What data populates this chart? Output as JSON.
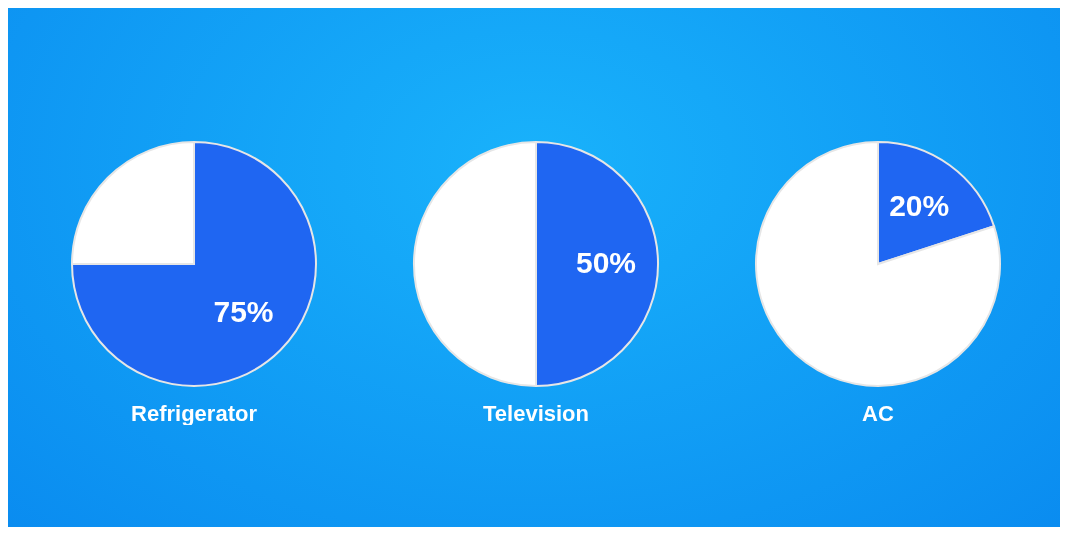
{
  "chart_data": [
    {
      "type": "pie",
      "title": "Refrigerator",
      "categories": [
        null,
        null
      ],
      "values": [
        75,
        25
      ],
      "colors": [
        "#1f66f2",
        "#ffffff"
      ],
      "value_labels": [
        "75%",
        null
      ]
    },
    {
      "type": "pie",
      "title": "Television",
      "categories": [
        null,
        null
      ],
      "values": [
        50,
        50
      ],
      "colors": [
        "#1f66f2",
        "#ffffff"
      ],
      "value_labels": [
        "50%",
        null
      ]
    },
    {
      "type": "pie",
      "title": "AC",
      "categories": [
        null,
        null
      ],
      "values": [
        20,
        80
      ],
      "colors": [
        "#1f66f2",
        "#ffffff"
      ],
      "value_labels": [
        "20%",
        null
      ]
    }
  ]
}
